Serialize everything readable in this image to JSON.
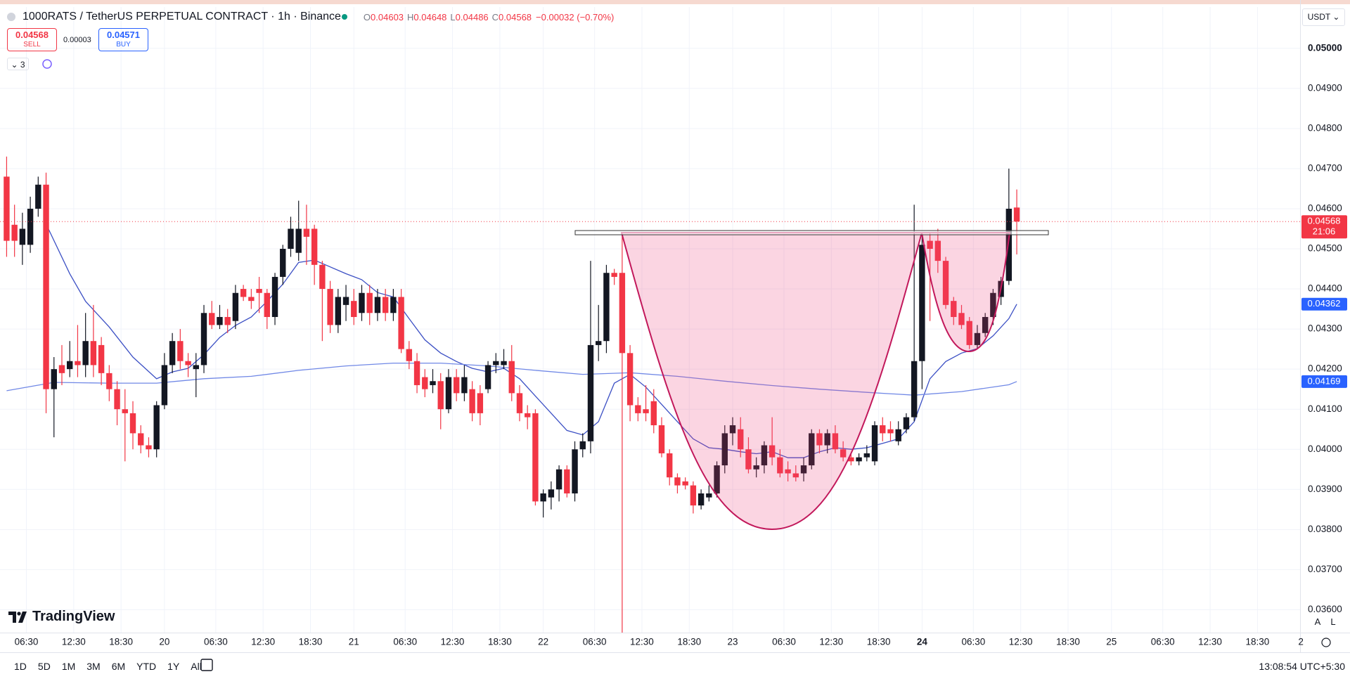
{
  "header": {
    "symbol": "1000RATS / TetherUS PERPETUAL CONTRACT · 1h · Binance",
    "ohlc": [
      {
        "label": "O",
        "value": "0.04603"
      },
      {
        "label": "H",
        "value": "0.04648"
      },
      {
        "label": "L",
        "value": "0.04486"
      },
      {
        "label": "C",
        "value": "0.04568"
      }
    ],
    "change": "−0.00032 (−0.70%)"
  },
  "trade": {
    "sell_price": "0.04568",
    "sell_label": "SELL",
    "spread": "0.00003",
    "buy_price": "0.04571",
    "buy_label": "BUY"
  },
  "indicators_count": "3",
  "currency": "USDT",
  "logo": "TradingView",
  "scale_buttons": [
    "A",
    "L"
  ],
  "ranges": [
    "1D",
    "5D",
    "1M",
    "3M",
    "6M",
    "YTD",
    "1Y",
    "All"
  ],
  "clock": "13:08:54 UTC+5:30",
  "chart_data": {
    "type": "candlestick",
    "x": [
      4,
      5,
      6,
      7,
      8,
      9,
      10,
      11,
      12,
      13,
      14,
      15,
      16,
      17,
      18,
      19,
      20,
      21,
      22,
      23,
      24,
      25,
      26,
      27,
      28,
      29,
      30,
      31,
      32,
      33,
      34,
      35,
      36,
      37,
      38,
      39,
      40,
      41,
      42,
      43,
      44,
      45,
      46,
      47,
      48,
      49,
      50,
      51,
      52,
      53,
      54,
      55,
      56,
      57,
      58,
      59,
      60,
      61,
      62,
      63,
      64,
      65,
      66,
      67,
      68,
      69,
      70,
      71,
      72,
      73,
      74,
      75,
      76,
      77,
      78,
      79,
      80,
      81,
      82,
      83,
      84,
      85,
      86,
      87,
      88,
      89,
      90,
      91,
      92,
      93,
      94,
      95,
      96,
      97,
      98,
      99,
      100,
      101,
      102,
      103,
      104,
      105,
      106,
      107,
      108,
      109,
      110,
      111,
      112,
      113,
      114,
      115,
      116,
      117,
      118,
      119,
      120,
      121,
      122,
      123,
      124,
      125,
      126,
      127,
      128,
      129,
      130,
      131,
      132
    ],
    "open": [
      0.0468,
      0.0456,
      0.0451,
      0.0451,
      0.046,
      0.0466,
      0.0415,
      0.0421,
      0.042,
      0.0422,
      0.0421,
      0.0427,
      0.0426,
      0.0419,
      0.0415,
      0.041,
      0.0409,
      0.0404,
      0.0401,
      0.04,
      0.0411,
      0.0421,
      0.0427,
      0.0422,
      0.042,
      0.0421,
      0.0434,
      0.0431,
      0.0433,
      0.0432,
      0.044,
      0.0438,
      0.044,
      0.0439,
      0.0433,
      0.0443,
      0.045,
      0.0449,
      0.0455,
      0.0455,
      0.0446,
      0.044,
      0.0431,
      0.0436,
      0.0437,
      0.0434,
      0.0439,
      0.0434,
      0.0438,
      0.0434,
      0.0438,
      0.0425,
      0.0422,
      0.0418,
      0.0416,
      0.0417,
      0.041,
      0.0418,
      0.0414,
      0.0415,
      0.0414,
      0.0415,
      0.0421,
      0.0421,
      0.0422,
      0.0414,
      0.0409,
      0.0409,
      0.0387,
      0.0388,
      0.039,
      0.0395,
      0.0389,
      0.04,
      0.0402,
      0.0426,
      0.0427,
      0.0444,
      0.0444,
      0.0424,
      0.0411,
      0.041,
      0.0412,
      0.0406,
      0.0399,
      0.0393,
      0.0392,
      0.0391,
      0.0386,
      0.0388,
      0.0389,
      0.0396,
      0.0404,
      0.0405,
      0.04,
      0.0395,
      0.0396,
      0.0401,
      0.0398,
      0.0395,
      0.0394,
      0.0394,
      0.0396,
      0.0404,
      0.0401,
      0.0404,
      0.04,
      0.0398,
      0.0397,
      0.0398,
      0.0397,
      0.0406,
      0.0405,
      0.0402,
      0.0405,
      0.0408,
      0.0422,
      0.0452,
      0.0452,
      0.0447,
      0.0437,
      0.0434,
      0.0432,
      0.0426,
      0.0429,
      0.0433,
      0.0438,
      0.0442,
      0.04603
    ],
    "high": [
      0.0473,
      0.0461,
      0.0459,
      0.0463,
      0.0468,
      0.0469,
      0.0423,
      0.0426,
      0.0427,
      0.0431,
      0.0434,
      0.0436,
      0.0428,
      0.0421,
      0.0417,
      0.0415,
      0.0412,
      0.0406,
      0.0403,
      0.0412,
      0.0424,
      0.0429,
      0.043,
      0.0424,
      0.0424,
      0.0436,
      0.0437,
      0.0436,
      0.0435,
      0.0441,
      0.0441,
      0.044,
      0.0443,
      0.044,
      0.0444,
      0.0451,
      0.0458,
      0.0462,
      0.0461,
      0.0456,
      0.0447,
      0.0442,
      0.044,
      0.0441,
      0.044,
      0.0441,
      0.0441,
      0.044,
      0.044,
      0.044,
      0.044,
      0.0427,
      0.0424,
      0.042,
      0.042,
      0.0419,
      0.042,
      0.042,
      0.0421,
      0.0417,
      0.0416,
      0.0422,
      0.0424,
      0.0425,
      0.0426,
      0.0416,
      0.0411,
      0.041,
      0.039,
      0.0392,
      0.0396,
      0.0396,
      0.0402,
      0.0404,
      0.0447,
      0.0436,
      0.0446,
      0.0445,
      0.0454,
      0.0426,
      0.0413,
      0.0416,
      0.0415,
      0.0408,
      0.04,
      0.0394,
      0.0393,
      0.0392,
      0.039,
      0.0391,
      0.0397,
      0.0406,
      0.0408,
      0.0408,
      0.0403,
      0.0398,
      0.0402,
      0.0408,
      0.04,
      0.0397,
      0.0396,
      0.0398,
      0.0405,
      0.0405,
      0.0405,
      0.0406,
      0.0402,
      0.0399,
      0.0399,
      0.0401,
      0.0407,
      0.0408,
      0.0407,
      0.0407,
      0.0409,
      0.0461,
      0.0454,
      0.0454,
      0.0455,
      0.0448,
      0.0438,
      0.0436,
      0.0433,
      0.0431,
      0.0434,
      0.044,
      0.0443,
      0.047,
      0.04648
    ],
    "low": [
      0.0448,
      0.0448,
      0.0446,
      0.0449,
      0.0458,
      0.0409,
      0.0403,
      0.0416,
      0.0418,
      0.0418,
      0.0418,
      0.0418,
      0.0416,
      0.0412,
      0.0406,
      0.0397,
      0.04,
      0.0399,
      0.0398,
      0.0398,
      0.041,
      0.0419,
      0.042,
      0.0418,
      0.0413,
      0.0419,
      0.043,
      0.043,
      0.0429,
      0.043,
      0.0437,
      0.0435,
      0.0434,
      0.043,
      0.0431,
      0.0441,
      0.0448,
      0.0447,
      0.0446,
      0.0441,
      0.0427,
      0.0429,
      0.0429,
      0.0432,
      0.0431,
      0.0432,
      0.0431,
      0.0432,
      0.0432,
      0.0432,
      0.0424,
      0.042,
      0.0414,
      0.0413,
      0.0414,
      0.0405,
      0.0409,
      0.0412,
      0.0412,
      0.0407,
      0.0406,
      0.0414,
      0.0419,
      0.042,
      0.0412,
      0.0407,
      0.0405,
      0.0386,
      0.0383,
      0.0385,
      0.0387,
      0.0388,
      0.0387,
      0.0398,
      0.0399,
      0.0422,
      0.0424,
      0.0441,
      0.03543,
      0.0407,
      0.0407,
      0.0407,
      0.0404,
      0.0398,
      0.0391,
      0.0389,
      0.039,
      0.0384,
      0.0385,
      0.0387,
      0.0388,
      0.0394,
      0.0401,
      0.0398,
      0.0394,
      0.0393,
      0.0394,
      0.0396,
      0.0393,
      0.0392,
      0.0392,
      0.0392,
      0.0395,
      0.0399,
      0.0399,
      0.0399,
      0.0397,
      0.0396,
      0.0396,
      0.0397,
      0.0396,
      0.0402,
      0.0402,
      0.0401,
      0.0404,
      0.0407,
      0.0415,
      0.0432,
      0.0444,
      0.0435,
      0.0431,
      0.043,
      0.0425,
      0.0425,
      0.0428,
      0.0431,
      0.0436,
      0.0441,
      0.04486
    ],
    "close": [
      0.0452,
      0.0452,
      0.0455,
      0.046,
      0.0466,
      0.0415,
      0.042,
      0.0419,
      0.0422,
      0.0421,
      0.0427,
      0.0421,
      0.0419,
      0.0415,
      0.041,
      0.0409,
      0.0404,
      0.0401,
      0.04,
      0.0411,
      0.0421,
      0.0427,
      0.0422,
      0.0421,
      0.0421,
      0.0434,
      0.0431,
      0.0433,
      0.0431,
      0.0439,
      0.0438,
      0.0437,
      0.0439,
      0.0433,
      0.0443,
      0.045,
      0.0455,
      0.0455,
      0.0453,
      0.0446,
      0.044,
      0.0431,
      0.0438,
      0.0438,
      0.0433,
      0.0439,
      0.0434,
      0.0438,
      0.0434,
      0.0438,
      0.0425,
      0.0422,
      0.0416,
      0.0415,
      0.0417,
      0.041,
      0.0418,
      0.0414,
      0.0418,
      0.0409,
      0.0409,
      0.0421,
      0.0422,
      0.0422,
      0.0414,
      0.0409,
      0.0408,
      0.0387,
      0.0389,
      0.039,
      0.0395,
      0.0389,
      0.04,
      0.0402,
      0.0426,
      0.0427,
      0.0444,
      0.0443,
      0.0424,
      0.0411,
      0.0409,
      0.0409,
      0.0406,
      0.0399,
      0.0393,
      0.0391,
      0.0391,
      0.0386,
      0.0389,
      0.0389,
      0.0396,
      0.0404,
      0.0406,
      0.04,
      0.0395,
      0.0396,
      0.0401,
      0.0398,
      0.0394,
      0.0394,
      0.0393,
      0.0396,
      0.0404,
      0.0401,
      0.0404,
      0.04,
      0.0398,
      0.0397,
      0.0398,
      0.0399,
      0.0406,
      0.0404,
      0.0404,
      0.0405,
      0.0408,
      0.0422,
      0.0451,
      0.045,
      0.0447,
      0.0436,
      0.0433,
      0.0431,
      0.0426,
      0.0429,
      0.0433,
      0.0439,
      0.0442,
      0.046,
      0.04568
    ],
    "up_color": "#131722",
    "down_color": "#f23645",
    "overlays": [
      {
        "type": "line",
        "color": "#3b4fc4",
        "x": [
          9,
          12,
          14,
          17,
          20,
          23,
          25,
          27,
          29,
          31,
          33,
          35,
          37,
          39,
          41,
          43,
          45,
          47,
          49,
          51,
          53,
          55,
          57,
          59,
          61,
          63,
          65,
          67,
          69,
          71,
          73,
          75,
          77,
          79,
          81,
          83,
          85,
          87,
          89,
          91,
          93,
          95,
          97,
          99,
          101,
          103,
          105,
          107,
          109,
          111,
          113,
          115,
          117,
          119,
          121,
          123,
          125,
          127,
          129,
          131,
          132
        ],
        "values": [
          0.04562,
          0.04438,
          0.04369,
          0.04305,
          0.0423,
          0.04176,
          0.04193,
          0.04202,
          0.04236,
          0.04279,
          0.04309,
          0.0433,
          0.04369,
          0.04412,
          0.04466,
          0.04472,
          0.04455,
          0.04438,
          0.04423,
          0.04391,
          0.0438,
          0.04326,
          0.04273,
          0.0424,
          0.04219,
          0.04202,
          0.04193,
          0.04202,
          0.04176,
          0.04133,
          0.0409,
          0.04047,
          0.04036,
          0.04069,
          0.04165,
          0.04187,
          0.04155,
          0.04112,
          0.04069,
          0.04026,
          0.04004,
          0.04,
          0.03994,
          0.03989,
          0.03994,
          0.03979,
          0.03979,
          0.03994,
          0.04004,
          0.04,
          0.04004,
          0.04015,
          0.04026,
          0.04069,
          0.04176,
          0.04219,
          0.0424,
          0.04251,
          0.04283,
          0.04326,
          0.04362
        ]
      },
      {
        "type": "line",
        "color": "#7088e6",
        "x": [
          4,
          10,
          17,
          23,
          29,
          35,
          41,
          47,
          53,
          59,
          65,
          71,
          77,
          83,
          89,
          95,
          101,
          107,
          113,
          119,
          125,
          131,
          132
        ],
        "values": [
          0.04146,
          0.04167,
          0.04165,
          0.04165,
          0.04176,
          0.04182,
          0.04197,
          0.04208,
          0.04215,
          0.04215,
          0.04208,
          0.04197,
          0.04187,
          0.04191,
          0.04182,
          0.0417,
          0.04159,
          0.0415,
          0.04142,
          0.04135,
          0.04144,
          0.04161,
          0.04169
        ]
      }
    ],
    "markers": [
      {
        "value": 0.04568,
        "label": "0.04568",
        "countdown": "21:06",
        "color": "#f23645",
        "price_line": true
      },
      {
        "value": 0.04362,
        "label": "0.04362",
        "color": "#2962ff"
      },
      {
        "value": 0.04169,
        "label": "0.04169",
        "color": "#2962ff"
      }
    ],
    "xlim": [
      3.16,
      167.9
    ],
    "ylim": [
      0.035429,
      0.05103
    ],
    "xticks": [
      {
        "value": 6.5,
        "label": "06:30"
      },
      {
        "value": 12.5,
        "label": "12:30"
      },
      {
        "value": 18.5,
        "label": "18:30"
      },
      {
        "value": 24,
        "label": "20"
      },
      {
        "value": 30.5,
        "label": "06:30"
      },
      {
        "value": 36.5,
        "label": "12:30"
      },
      {
        "value": 42.5,
        "label": "18:30"
      },
      {
        "value": 48,
        "label": "21"
      },
      {
        "value": 54.5,
        "label": "06:30"
      },
      {
        "value": 60.5,
        "label": "12:30"
      },
      {
        "value": 66.5,
        "label": "18:30"
      },
      {
        "value": 72,
        "label": "22"
      },
      {
        "value": 78.5,
        "label": "06:30"
      },
      {
        "value": 84.5,
        "label": "12:30"
      },
      {
        "value": 90.5,
        "label": "18:30"
      },
      {
        "value": 96,
        "label": "23"
      },
      {
        "value": 102.5,
        "label": "06:30"
      },
      {
        "value": 108.5,
        "label": "12:30"
      },
      {
        "value": 114.5,
        "label": "18:30"
      },
      {
        "value": 120,
        "label": "24",
        "bold": true
      },
      {
        "value": 126.5,
        "label": "06:30"
      },
      {
        "value": 132.5,
        "label": "12:30"
      },
      {
        "value": 138.5,
        "label": "18:30"
      },
      {
        "value": 144,
        "label": "25"
      },
      {
        "value": 150.5,
        "label": "06:30"
      },
      {
        "value": 156.5,
        "label": "12:30"
      },
      {
        "value": 162.5,
        "label": "18:30"
      },
      {
        "value": 168,
        "label": "2"
      }
    ],
    "yticks": [
      {
        "value": 0.036,
        "label": "0.03600"
      },
      {
        "value": 0.037,
        "label": "0.03700"
      },
      {
        "value": 0.038,
        "label": "0.03800"
      },
      {
        "value": 0.039,
        "label": "0.03900"
      },
      {
        "value": 0.04,
        "label": "0.04000"
      },
      {
        "value": 0.041,
        "label": "0.04100"
      },
      {
        "value": 0.042,
        "label": "0.04200"
      },
      {
        "value": 0.043,
        "label": "0.04300"
      },
      {
        "value": 0.044,
        "label": "0.04400"
      },
      {
        "value": 0.045,
        "label": "0.04500"
      },
      {
        "value": 0.046,
        "label": "0.04600"
      },
      {
        "value": 0.047,
        "label": "0.04700"
      },
      {
        "value": 0.048,
        "label": "0.04800"
      },
      {
        "value": 0.049,
        "label": "0.04900"
      },
      {
        "value": 0.05,
        "label": "0.05000",
        "bold": true
      }
    ],
    "grid": true
  }
}
